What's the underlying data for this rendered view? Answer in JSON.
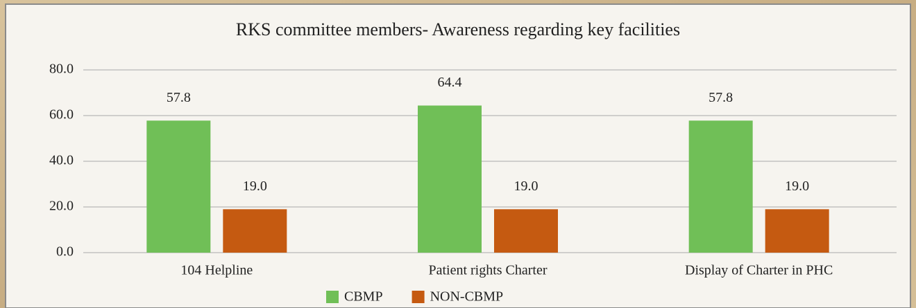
{
  "chart_data": {
    "type": "bar",
    "title": "RKS committee members- Awareness regarding key facilities",
    "categories": [
      "104 Helpline",
      "Patient rights Charter",
      "Display of Charter in PHC"
    ],
    "series": [
      {
        "name": "CBMP",
        "color": "#70bf57",
        "values": [
          57.8,
          64.4,
          57.8
        ],
        "value_labels": [
          "57.8",
          "64.4",
          "57.8"
        ]
      },
      {
        "name": "NON-CBMP",
        "color": "#c55a11",
        "values": [
          19.0,
          19.0,
          19.0
        ],
        "value_labels": [
          "19.0",
          "19.0",
          "19.0"
        ]
      }
    ],
    "ylim": [
      0,
      80
    ],
    "yticks": [
      {
        "value": 0,
        "label": "0.0"
      },
      {
        "value": 20,
        "label": "20.0"
      },
      {
        "value": 40,
        "label": "40.0"
      },
      {
        "value": 60,
        "label": "60.0"
      },
      {
        "value": 80,
        "label": "80.0"
      }
    ],
    "grid": true,
    "legend": "bottom"
  }
}
